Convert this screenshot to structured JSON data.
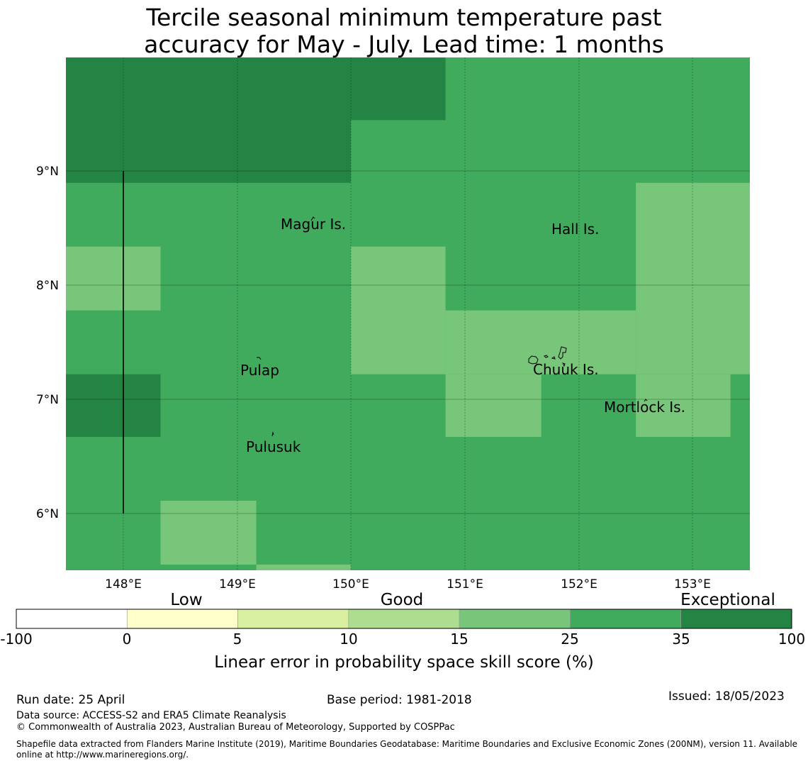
{
  "title": {
    "line1": "Tercile seasonal minimum temperature past",
    "line2": "accuracy for May - July. Lead time: 1 months"
  },
  "map": {
    "lon_ticks": [
      "148°E",
      "149°E",
      "150°E",
      "151°E",
      "152°E",
      "153°E"
    ],
    "lat_ticks": [
      "9°N",
      "8°N",
      "7°N",
      "6°N"
    ],
    "place_labels": [
      "Magur Is.",
      "Hall Is.",
      "Pulap",
      "Chuuk Is.",
      "Mortlock Is.",
      "Pulusuk"
    ],
    "grid_cells": [
      {
        "lon0": 147.5,
        "lon1": 150.0,
        "lat0": 8.9,
        "lat1": 10.0,
        "class": 6
      },
      {
        "lon0": 150.0,
        "lon1": 150.83,
        "lat0": 9.45,
        "lat1": 10.0,
        "class": 6
      },
      {
        "lon0": 147.5,
        "lon1": 147.83,
        "lat0": 6.67,
        "lat1": 7.22,
        "class": 6
      },
      {
        "lon0": 147.83,
        "lon1": 148.33,
        "lat0": 6.67,
        "lat1": 7.22,
        "class": 6
      },
      {
        "lon0": 147.5,
        "lon1": 148.33,
        "lat0": 7.78,
        "lat1": 8.34,
        "class": 4
      },
      {
        "lon0": 150.0,
        "lon1": 150.83,
        "lat0": 7.22,
        "lat1": 8.34,
        "class": 4
      },
      {
        "lon0": 150.83,
        "lon1": 152.5,
        "lat0": 7.22,
        "lat1": 7.78,
        "class": 4
      },
      {
        "lon0": 150.83,
        "lon1": 151.67,
        "lat0": 6.67,
        "lat1": 7.22,
        "class": 4
      },
      {
        "lon0": 152.5,
        "lon1": 153.5,
        "lat0": 7.22,
        "lat1": 8.9,
        "class": 4
      },
      {
        "lon0": 152.5,
        "lon1": 153.33,
        "lat0": 6.67,
        "lat1": 7.22,
        "class": 4
      },
      {
        "lon0": 148.33,
        "lon1": 149.17,
        "lat0": 5.55,
        "lat1": 6.11,
        "class": 4
      },
      {
        "lon0": 149.17,
        "lon1": 150.0,
        "lat0": 5.5,
        "lat1": 5.55,
        "class": 4
      }
    ],
    "default_class": 5
  },
  "legend": {
    "category_labels": [
      "Low",
      "Good",
      "Exceptional"
    ],
    "tick_labels": [
      "-100",
      "0",
      "5",
      "10",
      "15",
      "25",
      "35",
      "100"
    ],
    "colors": [
      "#ffffff",
      "#ffffcc",
      "#d9f0a3",
      "#addd8e",
      "#78c679",
      "#41ab5d",
      "#238443"
    ],
    "xlabel": "Linear error in probability space skill score (%)"
  },
  "footer": {
    "run_date": "Run date: 25 April",
    "base_period": "Base period: 1981-2018",
    "issued": "Issued: 18/05/2023",
    "data_source": "Data source: ACCESS-S2 and ERA5 Climate Reanalysis",
    "copyright": "© Commonwealth of Australia 2023, Australian Bureau of Meteorology, Supported by COSPPac",
    "shapefile_line1": "Shapefile data extracted from Flanders Marine Institute (2019), Maritime Boundaries Geodatabase: Maritime Boundaries and Exclusive Economic Zones (200NM), version 11. Available",
    "shapefile_line2": "online at http://www.marineregions.org/."
  }
}
